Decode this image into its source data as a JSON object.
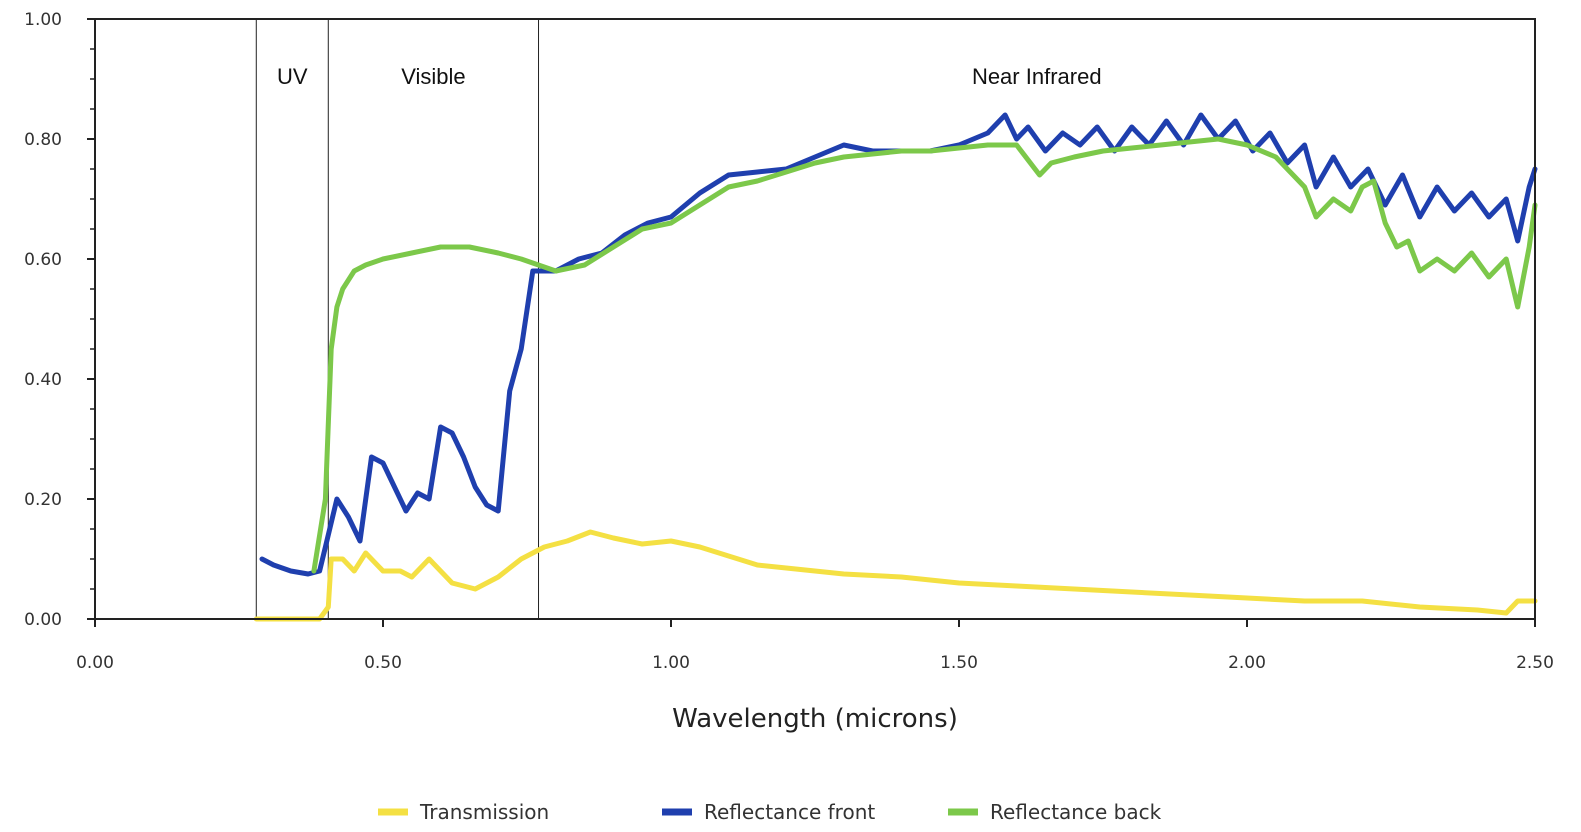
{
  "chart_data": {
    "type": "line",
    "title": "",
    "xlabel": "Wavelength (microns)",
    "ylabel": "",
    "xlim": [
      0,
      2.5
    ],
    "ylim": [
      0,
      1
    ],
    "x_ticks": [
      "0.00",
      "0.50",
      "1.00",
      "1.50",
      "2.00",
      "2.50"
    ],
    "y_ticks": [
      "0.00",
      "0.20",
      "0.40",
      "0.60",
      "0.80",
      "1.00"
    ],
    "grid": false,
    "legend_position": "bottom",
    "regions": [
      {
        "label": "UV",
        "x_start": 0.28,
        "x_end": 0.405
      },
      {
        "label": "Visible",
        "x_start": 0.405,
        "x_end": 0.77
      },
      {
        "label": "Near  Infrared",
        "x_start": 0.77,
        "x_end": 2.5
      }
    ],
    "series": [
      {
        "name": "Transmission",
        "color": "#f4e043",
        "points": [
          [
            0.28,
            0.0
          ],
          [
            0.35,
            0.0
          ],
          [
            0.39,
            0.0
          ],
          [
            0.405,
            0.02
          ],
          [
            0.41,
            0.1
          ],
          [
            0.43,
            0.1
          ],
          [
            0.45,
            0.08
          ],
          [
            0.47,
            0.11
          ],
          [
            0.5,
            0.08
          ],
          [
            0.53,
            0.08
          ],
          [
            0.55,
            0.07
          ],
          [
            0.58,
            0.1
          ],
          [
            0.62,
            0.06
          ],
          [
            0.66,
            0.05
          ],
          [
            0.7,
            0.07
          ],
          [
            0.74,
            0.1
          ],
          [
            0.78,
            0.12
          ],
          [
            0.82,
            0.13
          ],
          [
            0.86,
            0.145
          ],
          [
            0.9,
            0.135
          ],
          [
            0.95,
            0.125
          ],
          [
            1.0,
            0.13
          ],
          [
            1.05,
            0.12
          ],
          [
            1.1,
            0.105
          ],
          [
            1.15,
            0.09
          ],
          [
            1.2,
            0.085
          ],
          [
            1.3,
            0.075
          ],
          [
            1.4,
            0.07
          ],
          [
            1.5,
            0.06
          ],
          [
            1.6,
            0.055
          ],
          [
            1.7,
            0.05
          ],
          [
            1.8,
            0.045
          ],
          [
            1.9,
            0.04
          ],
          [
            2.0,
            0.035
          ],
          [
            2.1,
            0.03
          ],
          [
            2.2,
            0.03
          ],
          [
            2.3,
            0.02
          ],
          [
            2.4,
            0.015
          ],
          [
            2.45,
            0.01
          ],
          [
            2.47,
            0.03
          ],
          [
            2.5,
            0.03
          ]
        ]
      },
      {
        "name": "Reflectance front",
        "color": "#1f3fae",
        "points": [
          [
            0.29,
            0.1
          ],
          [
            0.31,
            0.09
          ],
          [
            0.34,
            0.08
          ],
          [
            0.37,
            0.075
          ],
          [
            0.39,
            0.08
          ],
          [
            0.4,
            0.12
          ],
          [
            0.42,
            0.2
          ],
          [
            0.44,
            0.17
          ],
          [
            0.46,
            0.13
          ],
          [
            0.48,
            0.27
          ],
          [
            0.5,
            0.26
          ],
          [
            0.52,
            0.22
          ],
          [
            0.54,
            0.18
          ],
          [
            0.56,
            0.21
          ],
          [
            0.58,
            0.2
          ],
          [
            0.6,
            0.32
          ],
          [
            0.62,
            0.31
          ],
          [
            0.64,
            0.27
          ],
          [
            0.66,
            0.22
          ],
          [
            0.68,
            0.19
          ],
          [
            0.7,
            0.18
          ],
          [
            0.72,
            0.38
          ],
          [
            0.74,
            0.45
          ],
          [
            0.76,
            0.58
          ],
          [
            0.8,
            0.58
          ],
          [
            0.84,
            0.6
          ],
          [
            0.88,
            0.61
          ],
          [
            0.92,
            0.64
          ],
          [
            0.96,
            0.66
          ],
          [
            1.0,
            0.67
          ],
          [
            1.05,
            0.71
          ],
          [
            1.1,
            0.74
          ],
          [
            1.15,
            0.745
          ],
          [
            1.2,
            0.75
          ],
          [
            1.25,
            0.77
          ],
          [
            1.3,
            0.79
          ],
          [
            1.35,
            0.78
          ],
          [
            1.4,
            0.78
          ],
          [
            1.45,
            0.78
          ],
          [
            1.5,
            0.79
          ],
          [
            1.55,
            0.81
          ],
          [
            1.58,
            0.84
          ],
          [
            1.6,
            0.8
          ],
          [
            1.62,
            0.82
          ],
          [
            1.65,
            0.78
          ],
          [
            1.68,
            0.81
          ],
          [
            1.71,
            0.79
          ],
          [
            1.74,
            0.82
          ],
          [
            1.77,
            0.78
          ],
          [
            1.8,
            0.82
          ],
          [
            1.83,
            0.79
          ],
          [
            1.86,
            0.83
          ],
          [
            1.89,
            0.79
          ],
          [
            1.92,
            0.84
          ],
          [
            1.95,
            0.8
          ],
          [
            1.98,
            0.83
          ],
          [
            2.01,
            0.78
          ],
          [
            2.04,
            0.81
          ],
          [
            2.07,
            0.76
          ],
          [
            2.1,
            0.79
          ],
          [
            2.12,
            0.72
          ],
          [
            2.15,
            0.77
          ],
          [
            2.18,
            0.72
          ],
          [
            2.21,
            0.75
          ],
          [
            2.24,
            0.69
          ],
          [
            2.27,
            0.74
          ],
          [
            2.3,
            0.67
          ],
          [
            2.33,
            0.72
          ],
          [
            2.36,
            0.68
          ],
          [
            2.39,
            0.71
          ],
          [
            2.42,
            0.67
          ],
          [
            2.45,
            0.7
          ],
          [
            2.47,
            0.63
          ],
          [
            2.49,
            0.72
          ],
          [
            2.5,
            0.75
          ]
        ]
      },
      {
        "name": "Reflectance back",
        "color": "#7cc84a",
        "points": [
          [
            0.38,
            0.08
          ],
          [
            0.4,
            0.2
          ],
          [
            0.41,
            0.45
          ],
          [
            0.42,
            0.52
          ],
          [
            0.43,
            0.55
          ],
          [
            0.45,
            0.58
          ],
          [
            0.47,
            0.59
          ],
          [
            0.5,
            0.6
          ],
          [
            0.55,
            0.61
          ],
          [
            0.6,
            0.62
          ],
          [
            0.65,
            0.62
          ],
          [
            0.7,
            0.61
          ],
          [
            0.74,
            0.6
          ],
          [
            0.77,
            0.59
          ],
          [
            0.8,
            0.58
          ],
          [
            0.85,
            0.59
          ],
          [
            0.9,
            0.62
          ],
          [
            0.95,
            0.65
          ],
          [
            1.0,
            0.66
          ],
          [
            1.05,
            0.69
          ],
          [
            1.1,
            0.72
          ],
          [
            1.15,
            0.73
          ],
          [
            1.2,
            0.745
          ],
          [
            1.25,
            0.76
          ],
          [
            1.3,
            0.77
          ],
          [
            1.35,
            0.775
          ],
          [
            1.4,
            0.78
          ],
          [
            1.45,
            0.78
          ],
          [
            1.5,
            0.785
          ],
          [
            1.55,
            0.79
          ],
          [
            1.6,
            0.79
          ],
          [
            1.64,
            0.74
          ],
          [
            1.66,
            0.76
          ],
          [
            1.7,
            0.77
          ],
          [
            1.75,
            0.78
          ],
          [
            1.8,
            0.785
          ],
          [
            1.85,
            0.79
          ],
          [
            1.9,
            0.795
          ],
          [
            1.95,
            0.8
          ],
          [
            2.0,
            0.79
          ],
          [
            2.05,
            0.77
          ],
          [
            2.08,
            0.74
          ],
          [
            2.1,
            0.72
          ],
          [
            2.12,
            0.67
          ],
          [
            2.15,
            0.7
          ],
          [
            2.18,
            0.68
          ],
          [
            2.2,
            0.72
          ],
          [
            2.22,
            0.73
          ],
          [
            2.24,
            0.66
          ],
          [
            2.26,
            0.62
          ],
          [
            2.28,
            0.63
          ],
          [
            2.3,
            0.58
          ],
          [
            2.33,
            0.6
          ],
          [
            2.36,
            0.58
          ],
          [
            2.39,
            0.61
          ],
          [
            2.42,
            0.57
          ],
          [
            2.45,
            0.6
          ],
          [
            2.47,
            0.52
          ],
          [
            2.49,
            0.62
          ],
          [
            2.5,
            0.69
          ]
        ]
      }
    ]
  }
}
